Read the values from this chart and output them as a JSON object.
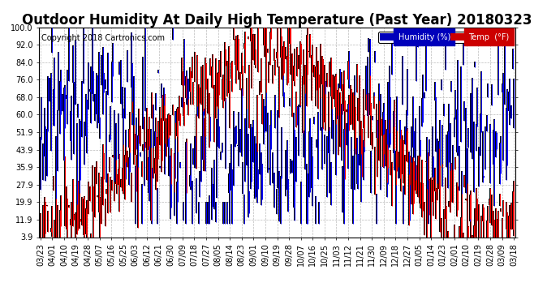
{
  "title": "Outdoor Humidity At Daily High Temperature (Past Year) 20180323",
  "copyright": "Copyright 2018 Cartronics.com",
  "yticks": [
    3.9,
    11.9,
    19.9,
    27.9,
    35.9,
    43.9,
    51.9,
    60.0,
    68.0,
    76.0,
    84.0,
    92.0,
    100.0
  ],
  "xtick_labels": [
    "03/23",
    "04/01",
    "04/10",
    "04/19",
    "04/28",
    "05/07",
    "05/16",
    "05/25",
    "06/03",
    "06/12",
    "06/21",
    "06/30",
    "07/09",
    "07/18",
    "07/27",
    "08/05",
    "08/14",
    "08/23",
    "09/01",
    "09/10",
    "09/19",
    "09/28",
    "10/07",
    "10/16",
    "10/25",
    "11/03",
    "11/12",
    "11/21",
    "11/30",
    "12/09",
    "12/18",
    "12/27",
    "01/05",
    "01/14",
    "01/23",
    "02/01",
    "02/10",
    "02/19",
    "02/28",
    "03/09",
    "03/18"
  ],
  "ymin": 3.9,
  "ymax": 100.0,
  "humidity_color": "#0000ff",
  "temp_color": "#ff0000",
  "outline_color": "#000000",
  "background_color": "#ffffff",
  "grid_color": "#bbbbbb",
  "legend_humidity_bg": "#0000bb",
  "legend_temp_bg": "#cc0000",
  "title_fontsize": 12,
  "tick_fontsize": 7,
  "copyright_fontsize": 7,
  "num_days": 366
}
